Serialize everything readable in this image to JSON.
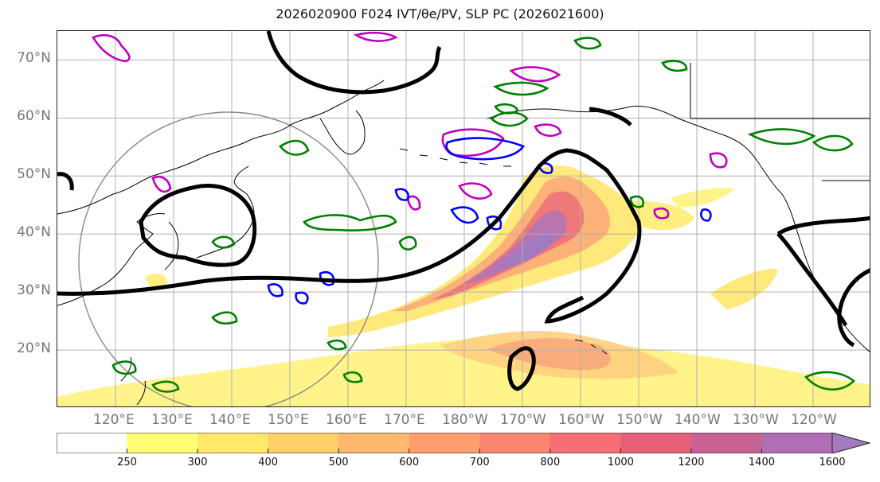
{
  "title": "2026020900 F024 IVT/θe/PV, SLP PC (2026021600)",
  "map": {
    "lat_labels": [
      "70°N",
      "60°N",
      "50°N",
      "40°N",
      "30°N",
      "20°N"
    ],
    "lat_values": [
      70,
      60,
      50,
      40,
      30,
      20
    ],
    "lon_labels": [
      "120°E",
      "130°E",
      "140°E",
      "150°E",
      "160°E",
      "170°E",
      "180°W",
      "170°W",
      "160°W",
      "150°W",
      "140°W",
      "130°W",
      "120°W"
    ],
    "lon_extent": [
      110,
      250
    ],
    "lat_extent": [
      10,
      75
    ],
    "colors": {
      "ivt_low": "#ffef5a",
      "ivt_mid": "#f99a6a",
      "ivt_high": "#e65a78",
      "ivt_max": "#a47ac0",
      "slp_contour": "#000000",
      "theta_e_contour": "#008000",
      "pv_contour_magenta": "#c000c0",
      "pv_contour_blue": "#0000ff",
      "grid": "#aaaaaa",
      "coast": "#000000",
      "circle": "#888888"
    }
  },
  "colorbar": {
    "levels": [
      250,
      300,
      400,
      500,
      600,
      700,
      800,
      1000,
      1200,
      1400,
      1600
    ],
    "tick_labels": [
      "250",
      "300",
      "400",
      "500",
      "600",
      "700",
      "800",
      "1000",
      "1200",
      "1400",
      "1600"
    ],
    "colors": [
      "#ffffff",
      "#ffff73",
      "#ffe86a",
      "#ffcf6a",
      "#ffb86d",
      "#ff9f6f",
      "#fc8571",
      "#f56f74",
      "#e66079",
      "#c76394",
      "#b06fb4",
      "#a47ac0"
    ],
    "extend": "max",
    "unit": ""
  }
}
